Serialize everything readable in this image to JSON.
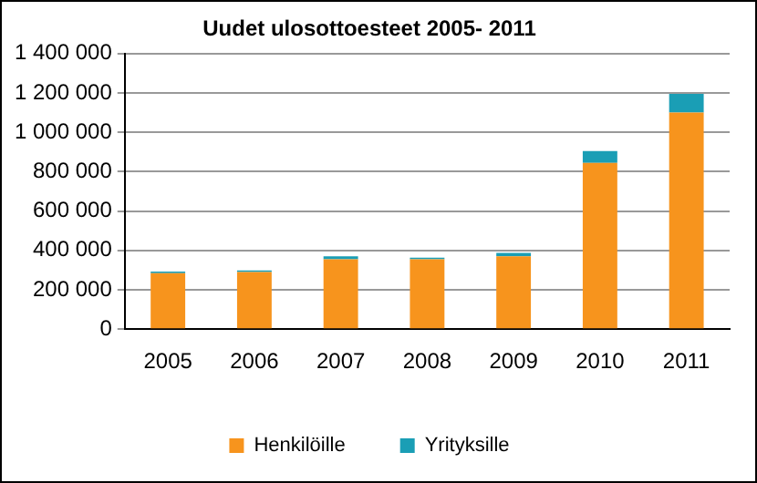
{
  "chart_data": {
    "type": "bar",
    "title": "Uudet ulosottoesteet 2005- 2011",
    "categories": [
      "2005",
      "2006",
      "2007",
      "2008",
      "2009",
      "2010",
      "2011"
    ],
    "series": [
      {
        "name": "Henkilöille",
        "color": "#f7941d",
        "values": [
          285000,
          290000,
          355000,
          355000,
          370000,
          845000,
          1100000
        ]
      },
      {
        "name": "Yrityksille",
        "color": "#1a9eb5",
        "values": [
          8000,
          8000,
          15000,
          8000,
          17000,
          60000,
          95000
        ]
      }
    ],
    "stacked": true,
    "ylim": [
      0,
      1400000
    ],
    "yticks": [
      0,
      200000,
      400000,
      600000,
      800000,
      1000000,
      1200000,
      1400000
    ],
    "grid": "y",
    "legend": "bottom"
  }
}
